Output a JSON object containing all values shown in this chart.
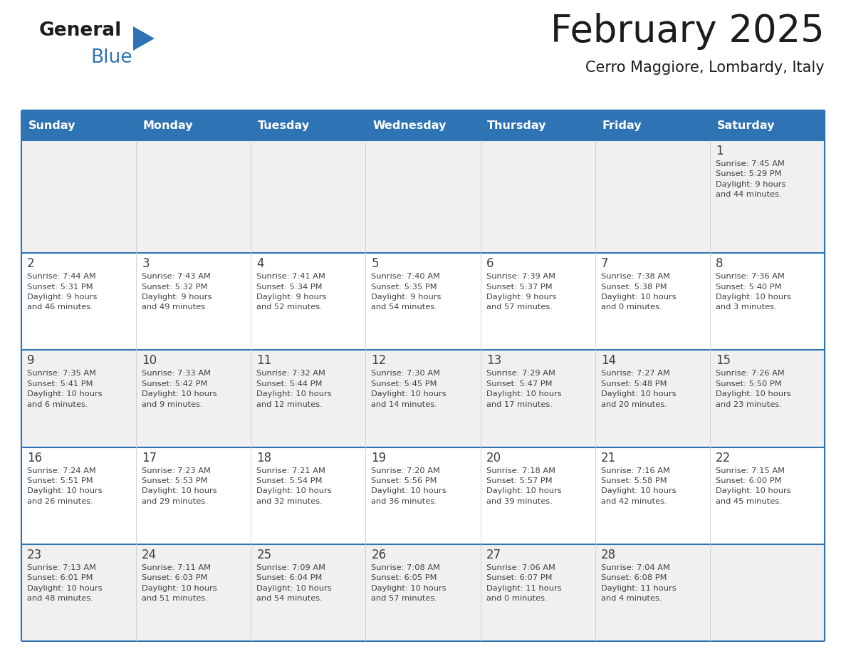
{
  "title": "February 2025",
  "subtitle": "Cerro Maggiore, Lombardy, Italy",
  "header_bg": "#2E74B5",
  "header_text_color": "#FFFFFF",
  "cell_bg_light": "#F0F0F0",
  "cell_bg_white": "#FFFFFF",
  "row_divider_color": "#2E74B5",
  "col_divider_color": "#CCCCCC",
  "text_color": "#404040",
  "days_of_week": [
    "Sunday",
    "Monday",
    "Tuesday",
    "Wednesday",
    "Thursday",
    "Friday",
    "Saturday"
  ],
  "weeks": [
    [
      {
        "day": "",
        "info": ""
      },
      {
        "day": "",
        "info": ""
      },
      {
        "day": "",
        "info": ""
      },
      {
        "day": "",
        "info": ""
      },
      {
        "day": "",
        "info": ""
      },
      {
        "day": "",
        "info": ""
      },
      {
        "day": "1",
        "info": "Sunrise: 7:45 AM\nSunset: 5:29 PM\nDaylight: 9 hours\nand 44 minutes."
      }
    ],
    [
      {
        "day": "2",
        "info": "Sunrise: 7:44 AM\nSunset: 5:31 PM\nDaylight: 9 hours\nand 46 minutes."
      },
      {
        "day": "3",
        "info": "Sunrise: 7:43 AM\nSunset: 5:32 PM\nDaylight: 9 hours\nand 49 minutes."
      },
      {
        "day": "4",
        "info": "Sunrise: 7:41 AM\nSunset: 5:34 PM\nDaylight: 9 hours\nand 52 minutes."
      },
      {
        "day": "5",
        "info": "Sunrise: 7:40 AM\nSunset: 5:35 PM\nDaylight: 9 hours\nand 54 minutes."
      },
      {
        "day": "6",
        "info": "Sunrise: 7:39 AM\nSunset: 5:37 PM\nDaylight: 9 hours\nand 57 minutes."
      },
      {
        "day": "7",
        "info": "Sunrise: 7:38 AM\nSunset: 5:38 PM\nDaylight: 10 hours\nand 0 minutes."
      },
      {
        "day": "8",
        "info": "Sunrise: 7:36 AM\nSunset: 5:40 PM\nDaylight: 10 hours\nand 3 minutes."
      }
    ],
    [
      {
        "day": "9",
        "info": "Sunrise: 7:35 AM\nSunset: 5:41 PM\nDaylight: 10 hours\nand 6 minutes."
      },
      {
        "day": "10",
        "info": "Sunrise: 7:33 AM\nSunset: 5:42 PM\nDaylight: 10 hours\nand 9 minutes."
      },
      {
        "day": "11",
        "info": "Sunrise: 7:32 AM\nSunset: 5:44 PM\nDaylight: 10 hours\nand 12 minutes."
      },
      {
        "day": "12",
        "info": "Sunrise: 7:30 AM\nSunset: 5:45 PM\nDaylight: 10 hours\nand 14 minutes."
      },
      {
        "day": "13",
        "info": "Sunrise: 7:29 AM\nSunset: 5:47 PM\nDaylight: 10 hours\nand 17 minutes."
      },
      {
        "day": "14",
        "info": "Sunrise: 7:27 AM\nSunset: 5:48 PM\nDaylight: 10 hours\nand 20 minutes."
      },
      {
        "day": "15",
        "info": "Sunrise: 7:26 AM\nSunset: 5:50 PM\nDaylight: 10 hours\nand 23 minutes."
      }
    ],
    [
      {
        "day": "16",
        "info": "Sunrise: 7:24 AM\nSunset: 5:51 PM\nDaylight: 10 hours\nand 26 minutes."
      },
      {
        "day": "17",
        "info": "Sunrise: 7:23 AM\nSunset: 5:53 PM\nDaylight: 10 hours\nand 29 minutes."
      },
      {
        "day": "18",
        "info": "Sunrise: 7:21 AM\nSunset: 5:54 PM\nDaylight: 10 hours\nand 32 minutes."
      },
      {
        "day": "19",
        "info": "Sunrise: 7:20 AM\nSunset: 5:56 PM\nDaylight: 10 hours\nand 36 minutes."
      },
      {
        "day": "20",
        "info": "Sunrise: 7:18 AM\nSunset: 5:57 PM\nDaylight: 10 hours\nand 39 minutes."
      },
      {
        "day": "21",
        "info": "Sunrise: 7:16 AM\nSunset: 5:58 PM\nDaylight: 10 hours\nand 42 minutes."
      },
      {
        "day": "22",
        "info": "Sunrise: 7:15 AM\nSunset: 6:00 PM\nDaylight: 10 hours\nand 45 minutes."
      }
    ],
    [
      {
        "day": "23",
        "info": "Sunrise: 7:13 AM\nSunset: 6:01 PM\nDaylight: 10 hours\nand 48 minutes."
      },
      {
        "day": "24",
        "info": "Sunrise: 7:11 AM\nSunset: 6:03 PM\nDaylight: 10 hours\nand 51 minutes."
      },
      {
        "day": "25",
        "info": "Sunrise: 7:09 AM\nSunset: 6:04 PM\nDaylight: 10 hours\nand 54 minutes."
      },
      {
        "day": "26",
        "info": "Sunrise: 7:08 AM\nSunset: 6:05 PM\nDaylight: 10 hours\nand 57 minutes."
      },
      {
        "day": "27",
        "info": "Sunrise: 7:06 AM\nSunset: 6:07 PM\nDaylight: 11 hours\nand 0 minutes."
      },
      {
        "day": "28",
        "info": "Sunrise: 7:04 AM\nSunset: 6:08 PM\nDaylight: 11 hours\nand 4 minutes."
      },
      {
        "day": "",
        "info": ""
      }
    ]
  ]
}
